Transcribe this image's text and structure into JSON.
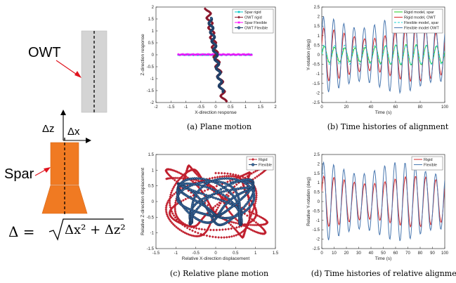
{
  "schematic": {
    "owt_label": "OWT",
    "spar_label": "Spar",
    "dz_label": "Δz",
    "dx_label": "Δx",
    "formula_lhs": "Δ =",
    "formula_rad": "Δx² + Δz²",
    "colors": {
      "tower": "#d4d4d4",
      "spar": "#f07a22",
      "arrow": "#e0141e"
    }
  },
  "chart_data": [
    {
      "id": "a",
      "type": "scatter",
      "caption": "(a) Plane motion",
      "xlabel": "X-direction response",
      "ylabel": "Z-direction response",
      "xlim": [
        -2,
        2
      ],
      "ylim": [
        -2,
        2
      ],
      "xticks": [
        "-2",
        "-1.5",
        "-1",
        "-0.5",
        "0",
        "0.5",
        "1",
        "1.5",
        "2"
      ],
      "yticks": [
        "2",
        "1.5",
        "1",
        "0.5",
        "0",
        "-0.5",
        "-1",
        "-1.5",
        "-2"
      ],
      "legend_position": "top-right",
      "series": [
        {
          "name": "Spar rigid",
          "color": "#00c8c8",
          "marker": "star"
        },
        {
          "name": "OWT rigid",
          "color": "#8b1a2e",
          "marker": "diamond"
        },
        {
          "name": "Spar Flexible",
          "color": "#ff00ff",
          "marker": "star"
        },
        {
          "name": "OWT Flexible",
          "color": "#1e3a5f",
          "marker": "circle"
        }
      ]
    },
    {
      "id": "b",
      "type": "line",
      "caption": "(b) Time histories of alignment",
      "xlabel": "Time (s)",
      "ylabel": "Y-rotation (deg)",
      "xlim": [
        0,
        100
      ],
      "ylim": [
        -2.5,
        2.5
      ],
      "xticks": [
        "0",
        "20",
        "40",
        "60",
        "80",
        "100"
      ],
      "yticks": [
        "2.5",
        "2",
        "1.5",
        "1",
        "0.5",
        "0",
        "-0.5",
        "-1",
        "-1.5",
        "-2",
        "-2.5"
      ],
      "legend_position": "top-right",
      "series": [
        {
          "name": "Rigid model, spar",
          "color": "#22cc22",
          "dash": false
        },
        {
          "name": "Rigid model, OWT",
          "color": "#d62728",
          "dash": false
        },
        {
          "name": "Flexible model, spar",
          "color": "#19d3d3",
          "dash": true
        },
        {
          "name": "Flexible model OWT",
          "color": "#4a78b0",
          "dash": false
        }
      ]
    },
    {
      "id": "c",
      "type": "scatter",
      "caption": "(c) Relative plane motion",
      "xlabel": "Relative X-direction displacement",
      "ylabel": "Relative Z-direction displacement",
      "xlim": [
        -1.5,
        1.5
      ],
      "ylim": [
        -1.5,
        1.5
      ],
      "xticks": [
        "-1.5",
        "-1",
        "-0.5",
        "0",
        "0.5",
        "1",
        "1.5"
      ],
      "yticks": [
        "1.5",
        "1",
        "0.5",
        "0",
        "-0.5",
        "-1",
        "-1.5"
      ],
      "legend_position": "top-right",
      "series": [
        {
          "name": "Rigid",
          "color": "#c0202e",
          "marker": "diamond"
        },
        {
          "name": "Flexible",
          "color": "#1e3a5f",
          "marker": "circle"
        }
      ]
    },
    {
      "id": "d",
      "type": "line",
      "caption": "(d) Time histories of relative alignment",
      "xlabel": "Time (s)",
      "ylabel": "Relative Y-rotation (deg)",
      "xlim": [
        0,
        100
      ],
      "ylim": [
        -2.5,
        2.5
      ],
      "xticks": [
        "0",
        "10",
        "20",
        "30",
        "40",
        "50",
        "60",
        "70",
        "80",
        "90",
        "100"
      ],
      "yticks": [
        "2.5",
        "2",
        "1.5",
        "1",
        "0.5",
        "0",
        "-0.5",
        "-1",
        "-1.5",
        "-2",
        "-2.5"
      ],
      "legend_position": "top-right",
      "series": [
        {
          "name": "Rigid",
          "color": "#d62728",
          "dash": false
        },
        {
          "name": "Flexible",
          "color": "#4a78b0",
          "dash": false
        }
      ]
    }
  ]
}
